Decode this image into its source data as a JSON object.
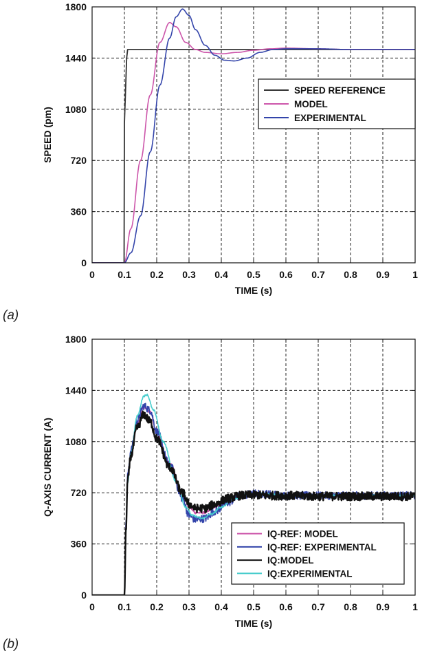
{
  "chart_data": [
    {
      "type": "line",
      "panel_label": "(a)",
      "xlabel": "TIME (s)",
      "ylabel": "SPEED (pm)",
      "xlim": [
        0,
        1
      ],
      "ylim": [
        0,
        1800
      ],
      "xticks": [
        0,
        0.1,
        0.2,
        0.3,
        0.4,
        0.5,
        0.6,
        0.7,
        0.8,
        0.9,
        1
      ],
      "xtick_labels": [
        "0",
        "0.1",
        "0.2",
        "0.3",
        "0.4",
        "0.5",
        "0.6",
        "0.7",
        "0.8",
        "0.9",
        "1"
      ],
      "yticks": [
        0,
        360,
        720,
        1080,
        1440,
        1800
      ],
      "ytick_labels": [
        "0",
        "360",
        "720",
        "1080",
        "1440",
        "1800"
      ],
      "grid": true,
      "legend_position": "upper-right",
      "series": [
        {
          "name": "SPEED REFERENCE",
          "color": "#333333",
          "x": [
            0,
            0.099,
            0.1,
            0.107,
            0.11,
            1
          ],
          "y": [
            0,
            0,
            980,
            1440,
            1500,
            1500
          ]
        },
        {
          "name": "MODEL",
          "color": "#cc55aa",
          "x": [
            0,
            0.1,
            0.12,
            0.15,
            0.18,
            0.21,
            0.24,
            0.26,
            0.29,
            0.32,
            0.35,
            0.4,
            0.45,
            0.5,
            0.55,
            0.6,
            0.7,
            0.8,
            1
          ],
          "y": [
            0,
            0,
            240,
            720,
            1180,
            1550,
            1690,
            1660,
            1550,
            1500,
            1480,
            1470,
            1480,
            1495,
            1505,
            1510,
            1505,
            1500,
            1500
          ]
        },
        {
          "name": "EXPERIMENTAL",
          "color": "#3344aa",
          "x": [
            0,
            0.1,
            0.12,
            0.15,
            0.18,
            0.21,
            0.24,
            0.26,
            0.28,
            0.3,
            0.32,
            0.35,
            0.38,
            0.41,
            0.44,
            0.48,
            0.52,
            0.56,
            0.6,
            0.7,
            0.8,
            1
          ],
          "y": [
            0,
            0,
            70,
            330,
            780,
            1250,
            1580,
            1730,
            1785,
            1740,
            1640,
            1530,
            1460,
            1425,
            1420,
            1440,
            1480,
            1500,
            1505,
            1505,
            1500,
            1500
          ]
        }
      ]
    },
    {
      "type": "line",
      "panel_label": "(b)",
      "xlabel": "TIME (s)",
      "ylabel": "Q-AXIS CURRENT (A)",
      "xlim": [
        0,
        1
      ],
      "ylim": [
        0,
        1800
      ],
      "xticks": [
        0,
        0.1,
        0.2,
        0.3,
        0.4,
        0.5,
        0.6,
        0.7,
        0.8,
        0.9,
        1
      ],
      "xtick_labels": [
        "0",
        "0.1",
        "0.2",
        "0.3",
        "0.4",
        "0.5",
        "0.6",
        "0.7",
        "0.8",
        "0.9",
        "1"
      ],
      "yticks": [
        0,
        360,
        720,
        1080,
        1440,
        1800
      ],
      "ytick_labels": [
        "0",
        "360",
        "720",
        "1080",
        "1440",
        "1800"
      ],
      "grid": true,
      "legend_position": "lower-right",
      "series": [
        {
          "name": "IQ-REF: MODEL",
          "color": "#cc55aa",
          "x": [
            0,
            0.1,
            0.105,
            0.11,
            0.12,
            0.14,
            0.16,
            0.18,
            0.2,
            0.24,
            0.28,
            0.3,
            0.32,
            0.35,
            0.38,
            0.42,
            0.46,
            0.5,
            0.55,
            0.6,
            0.7,
            0.8,
            1
          ],
          "y": [
            0,
            0,
            500,
            820,
            1000,
            1200,
            1320,
            1290,
            1140,
            930,
            720,
            620,
            580,
            580,
            620,
            670,
            700,
            710,
            710,
            705,
            700,
            700,
            700
          ]
        },
        {
          "name": "IQ-REF: EXPERIMENTAL",
          "color": "#3344aa",
          "x": [
            0,
            0.1,
            0.105,
            0.11,
            0.12,
            0.14,
            0.16,
            0.18,
            0.2,
            0.24,
            0.28,
            0.3,
            0.32,
            0.35,
            0.38,
            0.42,
            0.46,
            0.5,
            0.55,
            0.6,
            0.7,
            0.8,
            1
          ],
          "y": [
            0,
            0,
            520,
            840,
            1020,
            1230,
            1330,
            1300,
            1150,
            920,
            680,
            560,
            530,
            540,
            590,
            650,
            700,
            715,
            710,
            700,
            700,
            700,
            700
          ]
        },
        {
          "name": "IQ:MODEL",
          "color": "#111111",
          "x": [
            0,
            0.1,
            0.105,
            0.11,
            0.12,
            0.14,
            0.16,
            0.18,
            0.2,
            0.24,
            0.28,
            0.3,
            0.32,
            0.35,
            0.38,
            0.42,
            0.46,
            0.5,
            0.55,
            0.6,
            0.7,
            0.8,
            1
          ],
          "y": [
            0,
            0,
            480,
            800,
            980,
            1180,
            1270,
            1220,
            1100,
            900,
            720,
            640,
            610,
            610,
            640,
            680,
            700,
            705,
            700,
            700,
            695,
            695,
            695
          ]
        },
        {
          "name": "IQ:EXPERIMENTAL",
          "color": "#44cccc",
          "x": [
            0,
            0.1,
            0.105,
            0.11,
            0.12,
            0.14,
            0.16,
            0.17,
            0.19,
            0.22,
            0.26,
            0.29,
            0.31,
            0.34,
            0.37,
            0.4,
            0.44,
            0.48,
            0.52,
            0.56,
            0.6,
            0.7,
            0.8,
            1
          ],
          "y": [
            0,
            0,
            450,
            790,
            1000,
            1260,
            1400,
            1410,
            1300,
            1080,
            800,
            620,
            560,
            540,
            570,
            620,
            680,
            710,
            715,
            710,
            700,
            700,
            700,
            700
          ]
        }
      ]
    }
  ]
}
